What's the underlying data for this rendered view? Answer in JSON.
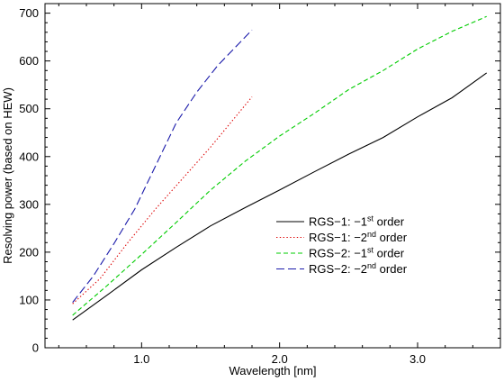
{
  "chart_data": {
    "type": "line",
    "xlabel": "Wavelength [nm]",
    "ylabel": "Resolving power (based on HEW)",
    "xlim": [
      0.3,
      3.6
    ],
    "ylim": [
      0,
      720
    ],
    "x_ticks": [
      {
        "value": 1.0,
        "label": "1.0"
      },
      {
        "value": 2.0,
        "label": "2.0"
      },
      {
        "value": 3.0,
        "label": "3.0"
      }
    ],
    "y_ticks": [
      {
        "value": 0,
        "label": "0"
      },
      {
        "value": 100,
        "label": "100"
      },
      {
        "value": 200,
        "label": "200"
      },
      {
        "value": 300,
        "label": "300"
      },
      {
        "value": 400,
        "label": "400"
      },
      {
        "value": 500,
        "label": "500"
      },
      {
        "value": 600,
        "label": "600"
      },
      {
        "value": 700,
        "label": "700"
      }
    ],
    "grid": false,
    "legend_position": "center-right",
    "series": [
      {
        "name": "RGS−1: −1st order",
        "legend_main": "RGS−1: −1",
        "legend_sup": "st",
        "legend_suffix": " order",
        "color": "#000000",
        "dash": "solid",
        "x": [
          0.5,
          0.75,
          1.0,
          1.25,
          1.5,
          1.75,
          2.0,
          2.25,
          2.5,
          2.75,
          3.0,
          3.25,
          3.5
        ],
        "y": [
          58,
          110,
          163,
          210,
          255,
          293,
          330,
          368,
          405,
          440,
          483,
          523,
          575
        ]
      },
      {
        "name": "RGS−1: −2nd order",
        "legend_main": "RGS−1: −2",
        "legend_sup": "nd",
        "legend_suffix": " order",
        "color": "#dd0000",
        "dash": "dotted",
        "x": [
          0.5,
          0.7,
          0.9,
          1.1,
          1.3,
          1.5,
          1.7,
          1.8
        ],
        "y": [
          92,
          145,
          220,
          290,
          355,
          420,
          490,
          525
        ]
      },
      {
        "name": "RGS−2: −1st order",
        "legend_main": "RGS−2: −1",
        "legend_sup": "st",
        "legend_suffix": " order",
        "color": "#00cc00",
        "dash": "dashed",
        "x": [
          0.5,
          0.75,
          1.0,
          1.25,
          1.5,
          1.75,
          2.0,
          2.25,
          2.5,
          2.75,
          3.0,
          3.25,
          3.5
        ],
        "y": [
          68,
          130,
          195,
          262,
          330,
          390,
          443,
          490,
          540,
          580,
          625,
          662,
          693
        ]
      },
      {
        "name": "RGS−2: −2nd order",
        "legend_main": "RGS−2: −2",
        "legend_sup": "nd",
        "legend_suffix": " order",
        "color": "#1a1aaa",
        "dash": "longdash",
        "x": [
          0.5,
          0.65,
          0.8,
          0.95,
          1.1,
          1.25,
          1.4,
          1.55,
          1.7,
          1.8
        ],
        "y": [
          95,
          150,
          218,
          290,
          380,
          470,
          535,
          590,
          635,
          665
        ]
      }
    ]
  }
}
